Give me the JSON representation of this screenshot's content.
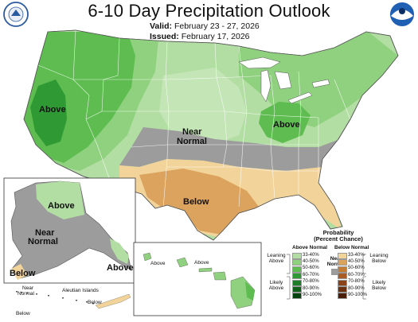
{
  "title": "6-10 Day Precipitation Outlook",
  "valid_label": "Valid:",
  "valid_dates": "February 23 - 27, 2026",
  "issued_label": "Issued:",
  "issued_date": "February 17, 2026",
  "logos": {
    "left": "doc-seal-icon",
    "right": "noaa-logo-icon"
  },
  "regions": {
    "west_above": "Above",
    "ohio_above": "Above",
    "plains_near_1": "Near",
    "plains_near_2": "Normal",
    "south_below": "Below",
    "alaska_above": "Above",
    "alaska_near_1": "Near",
    "alaska_near_2": "Normal",
    "alaska_below_sw": "Below",
    "alaska_above_se": "Above",
    "aleutian_near_1": "Near",
    "aleutian_near_2": "Normal",
    "aleutian_islands": "Aleutian Islands",
    "aleutian_below_1": "Below",
    "aleutian_below_2": "Below",
    "hawaii_above_1": "Above",
    "hawaii_above_2": "Above"
  },
  "legend": {
    "title_1": "Probability",
    "title_2": "(Percent Chance)",
    "above_head": "Above Normal",
    "below_head": "Below Normal",
    "near_1": "Near",
    "near_2": "Normal",
    "leaning_above_1": "Leaning",
    "leaning_above_2": "Above",
    "likely_above_1": "Likely",
    "likely_above_2": "Above",
    "leaning_below_1": "Leaning",
    "leaning_below_2": "Below",
    "likely_below_1": "Likely",
    "likely_below_2": "Below",
    "near_color": "#9c9c9c",
    "above": [
      {
        "label": "33-40%",
        "color": "#b3dea3"
      },
      {
        "label": "40-50%",
        "color": "#8fd17e"
      },
      {
        "label": "50-60%",
        "color": "#5ebc50"
      },
      {
        "label": "60-70%",
        "color": "#2f9a34"
      },
      {
        "label": "70-80%",
        "color": "#1e7d27"
      },
      {
        "label": "80-90%",
        "color": "#10601a"
      },
      {
        "label": "90-100%",
        "color": "#06420e"
      }
    ],
    "below": [
      {
        "label": "33-40%",
        "color": "#f2d49a"
      },
      {
        "label": "40-50%",
        "color": "#dba35e"
      },
      {
        "label": "50-60%",
        "color": "#c47c34"
      },
      {
        "label": "60-70%",
        "color": "#a95b25"
      },
      {
        "label": "70-80%",
        "color": "#8a4219"
      },
      {
        "label": "80-90%",
        "color": "#6b3010"
      },
      {
        "label": "90-100%",
        "color": "#4a1f08"
      }
    ]
  }
}
